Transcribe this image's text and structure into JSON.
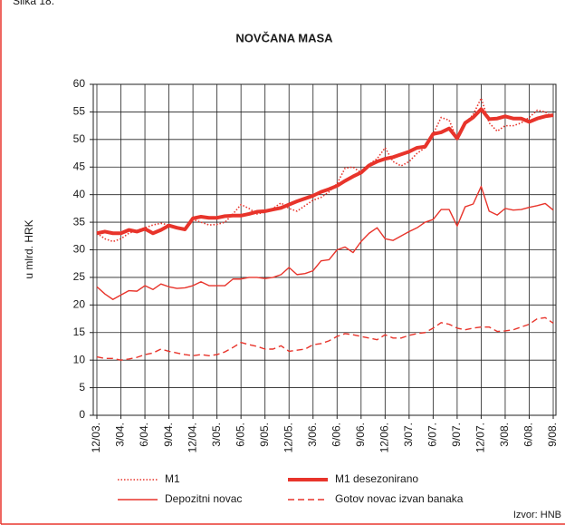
{
  "chart_data": {
    "type": "line",
    "figure_label": "Slika 18.",
    "title": "NOVČANA MASA",
    "ylabel": "u mlrd. HRK",
    "source": "Izvor: HNB",
    "categories": [
      "12/03.",
      null,
      null,
      "3/04.",
      null,
      null,
      "6/04.",
      null,
      null,
      "9/04.",
      null,
      null,
      "12/04.",
      null,
      null,
      "3/05.",
      null,
      null,
      "6/05.",
      null,
      null,
      "9/05.",
      null,
      null,
      "12/05.",
      null,
      null,
      "3/06.",
      null,
      null,
      "6/06.",
      null,
      null,
      "9/06.",
      null,
      null,
      "12/06.",
      null,
      null,
      "3/07.",
      null,
      null,
      "6/07.",
      null,
      null,
      "9/07.",
      null,
      null,
      "12/07.",
      null,
      null,
      "3/08.",
      null,
      null,
      "6/08.",
      null,
      null,
      "9/08."
    ],
    "ylim": [
      0,
      60
    ],
    "yticks": [
      0,
      5,
      10,
      15,
      20,
      25,
      30,
      35,
      40,
      45,
      50,
      55,
      60
    ],
    "grid": true,
    "series": [
      {
        "name": "M1",
        "color": "#e8342b",
        "style": "dotted",
        "values": [
          33,
          32,
          31.5,
          32,
          33,
          33.5,
          34,
          34.5,
          34.8,
          34.5,
          34,
          33.5,
          35.5,
          35,
          34.5,
          34.6,
          35,
          36.5,
          38.2,
          37.5,
          36.5,
          36.8,
          37.5,
          38.5,
          37.5,
          37,
          38,
          39,
          39.5,
          40.5,
          42,
          44.8,
          45,
          44,
          45.5,
          46.5,
          48.5,
          46,
          45.2,
          46,
          47.5,
          48.5,
          51,
          54,
          53.5,
          50,
          53,
          54.5,
          57.5,
          53,
          51.5,
          52.5,
          52.5,
          53,
          54,
          55.3,
          55,
          54
        ]
      },
      {
        "name": "M1 desezonirano",
        "color": "#e8342b",
        "style": "thick",
        "values": [
          33,
          33.3,
          33,
          33,
          33.6,
          33.3,
          33.8,
          33,
          33.6,
          34.4,
          34,
          33.7,
          35.7,
          36,
          35.8,
          35.8,
          36.1,
          36.2,
          36.2,
          36.5,
          36.9,
          37,
          37.3,
          37.6,
          38.2,
          38.8,
          39.3,
          39.8,
          40.5,
          41,
          41.6,
          42.5,
          43.3,
          44,
          45.3,
          46,
          46.5,
          46.8,
          47.3,
          47.8,
          48.5,
          48.7,
          51,
          51.3,
          52,
          50.2,
          53,
          54,
          55.5,
          53.7,
          53.8,
          54.2,
          53.8,
          53.8,
          53.2,
          53.8,
          54.2,
          54.4
        ]
      },
      {
        "name": "Depozitni novac",
        "color": "#e8342b",
        "style": "solid",
        "values": [
          23.3,
          22,
          21,
          21.8,
          22.6,
          22.5,
          23.5,
          22.8,
          23.8,
          23.3,
          23,
          23.1,
          23.5,
          24.2,
          23.5,
          23.5,
          23.5,
          24.7,
          24.7,
          25,
          25,
          24.8,
          25,
          25.5,
          26.8,
          25.5,
          25.7,
          26.2,
          28,
          28.2,
          30,
          30.5,
          29.5,
          31.5,
          33,
          34,
          32,
          31.7,
          32.5,
          33.3,
          34,
          35,
          35.5,
          37.3,
          37.3,
          34.3,
          37.8,
          38.3,
          41.5,
          37,
          36.3,
          37.5,
          37.2,
          37.3,
          37.7,
          38,
          38.4,
          37.2
        ]
      },
      {
        "name": "Gotov novac izvan banaka",
        "color": "#e8342b",
        "style": "dashed",
        "values": [
          10.6,
          10.3,
          10.3,
          10,
          10.2,
          10.5,
          11,
          11.3,
          12,
          11.6,
          11.3,
          11,
          10.8,
          11,
          10.8,
          11,
          11.5,
          12.3,
          13.2,
          12.8,
          12.5,
          12,
          12,
          12.6,
          11.6,
          11.8,
          12,
          12.8,
          13,
          13.5,
          14.3,
          14.8,
          14.6,
          14.3,
          14,
          13.7,
          14.6,
          14,
          14,
          14.5,
          14.8,
          15,
          15.8,
          16.8,
          16.5,
          15.8,
          15.5,
          15.8,
          16,
          16,
          15.2,
          15.3,
          15.5,
          16,
          16.5,
          17.5,
          17.7,
          16.7
        ]
      }
    ]
  }
}
